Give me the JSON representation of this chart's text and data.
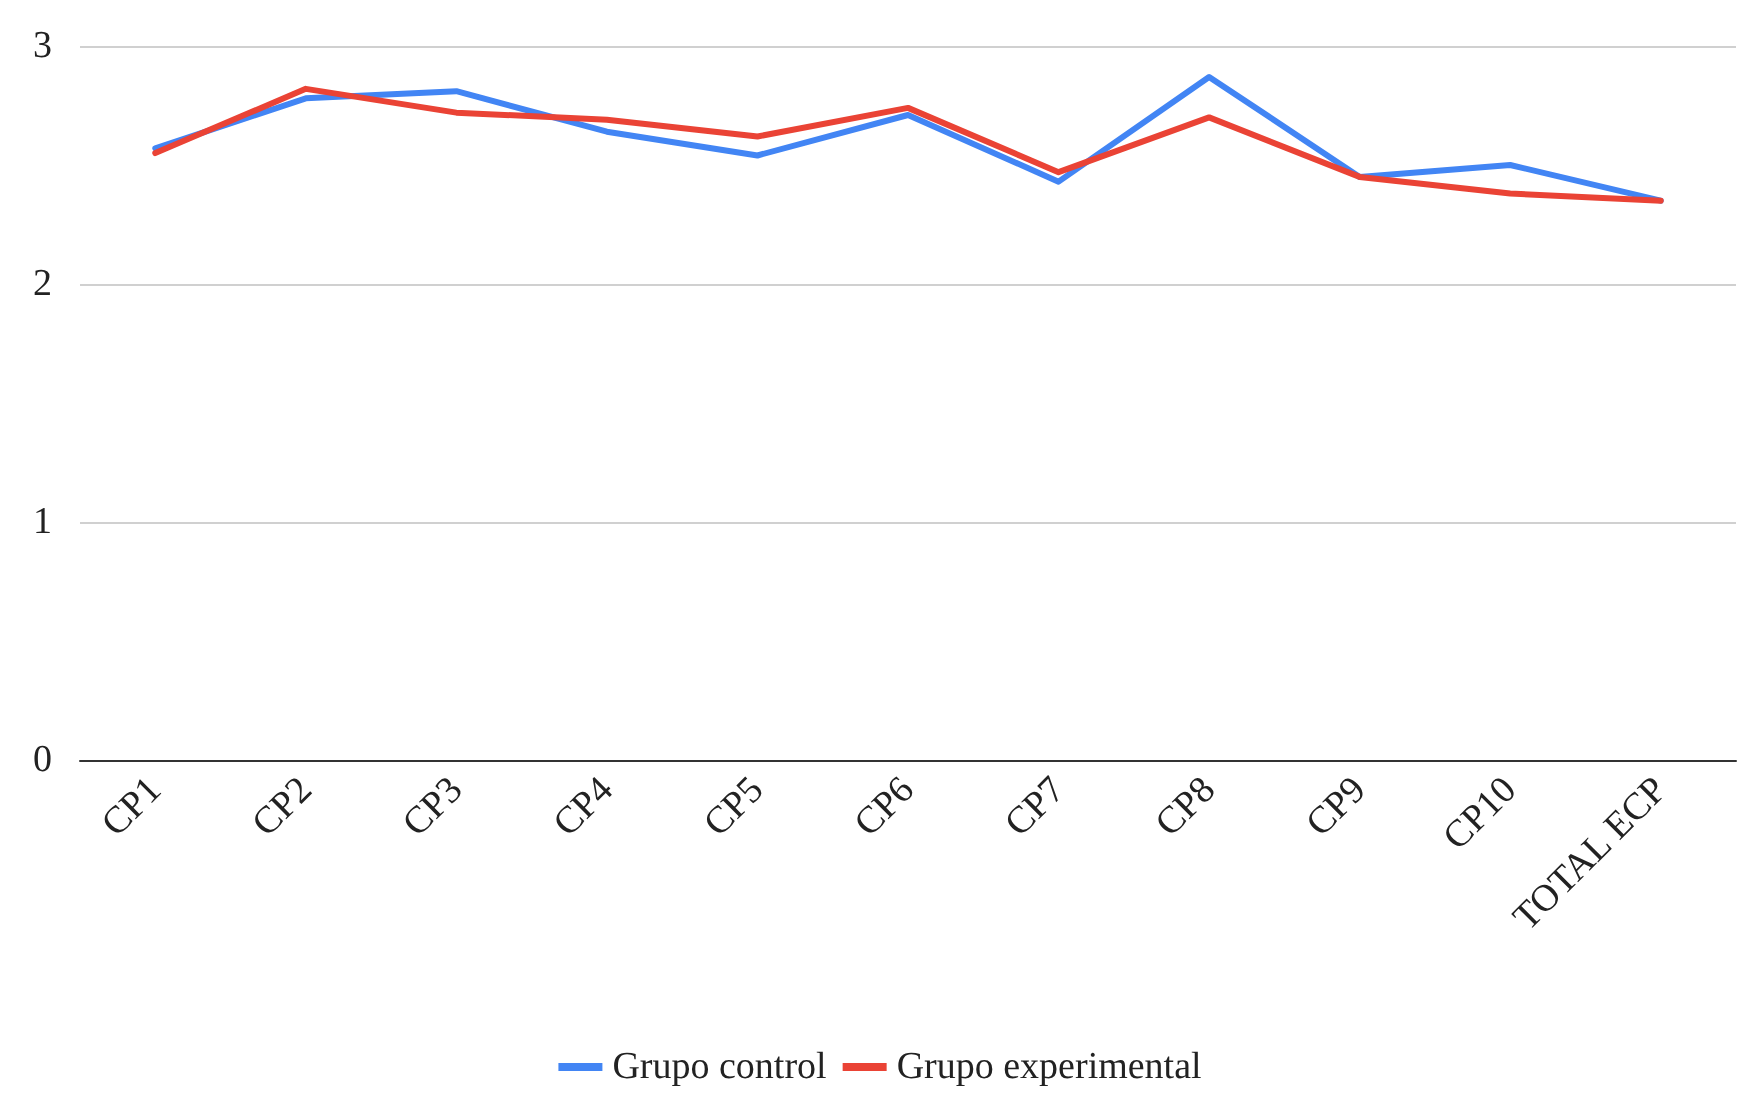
{
  "chart_data": {
    "type": "line",
    "categories": [
      "CP1",
      "CP2",
      "CP3",
      "CP4",
      "CP5",
      "CP6",
      "CP7",
      "CP8",
      "CP9",
      "CP10",
      "TOTAL ECP"
    ],
    "series": [
      {
        "name": "Grupo control",
        "color": "#4285f4",
        "values": [
          2.57,
          2.78,
          2.81,
          2.64,
          2.54,
          2.71,
          2.43,
          2.87,
          2.45,
          2.5,
          2.35
        ]
      },
      {
        "name": "Grupo experimental",
        "color": "#ea4335",
        "values": [
          2.55,
          2.82,
          2.72,
          2.69,
          2.62,
          2.74,
          2.47,
          2.7,
          2.45,
          2.38,
          2.35
        ]
      }
    ],
    "ylim": [
      0,
      3
    ],
    "yticks": [
      0,
      1,
      2,
      3
    ],
    "grid": "y",
    "legend": "bottom",
    "marker": "none",
    "line_style": "solid"
  }
}
